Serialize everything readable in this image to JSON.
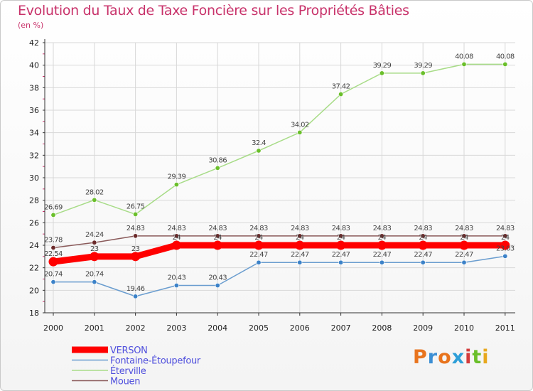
{
  "title": "Evolution du Taux de Taxe Foncière sur les Propriétés Bâties",
  "subtitle": "(en %)",
  "logo": "Proxiti",
  "colors": {
    "title": "#c8326a",
    "legend_text": "#5050dd",
    "logo": [
      "#e8741e",
      "#3c8fd4",
      "#e8741e",
      "#2e9fd8",
      "#d43c3c",
      "#6abf2a",
      "#e8a81e"
    ]
  },
  "chart_data": {
    "type": "line",
    "title": "Evolution du Taux de Taxe Foncière sur les Propriétés Bâties",
    "ylabel": "(en %)",
    "xlabel": "",
    "x": [
      "2000",
      "2001",
      "2002",
      "2003",
      "2004",
      "2005",
      "2006",
      "2007",
      "2008",
      "2009",
      "2010",
      "2011"
    ],
    "ylim": [
      18,
      42
    ],
    "yticks": [
      18,
      20,
      22,
      24,
      26,
      28,
      30,
      32,
      34,
      36,
      38,
      40,
      42
    ],
    "grid": true,
    "legend": "bottom-left",
    "series": [
      {
        "name": "Fontaine-Étoupefour",
        "color": "#6a9dcf",
        "marker": "#3c82c8",
        "width": 1.5,
        "values": [
          20.74,
          20.74,
          19.46,
          20.43,
          20.43,
          22.47,
          22.47,
          22.47,
          22.47,
          22.47,
          22.47,
          23.03
        ],
        "labels": [
          "20.74",
          "20.74",
          "19.46",
          "20.43",
          "20.43",
          "22.47",
          "22.47",
          "22.47",
          "22.47",
          "22.47",
          "22.47",
          "23.03"
        ]
      },
      {
        "name": "Éterville",
        "color": "#a8dc88",
        "marker": "#6abf2a",
        "width": 1.5,
        "values": [
          26.69,
          28.02,
          26.75,
          29.39,
          30.86,
          32.4,
          34.02,
          37.42,
          39.29,
          39.29,
          40.08,
          40.08
        ],
        "labels": [
          "26.69",
          "28.02",
          "26.75",
          "29.39",
          "30.86",
          "32.4",
          "34.02",
          "37.42",
          "39.29",
          "39.29",
          "40.08",
          "40.08"
        ]
      },
      {
        "name": "Mouen",
        "color": "#8a5a5a",
        "marker": "#6b2a2a",
        "width": 1.5,
        "values": [
          23.78,
          24.24,
          24.83,
          24.83,
          24.83,
          24.83,
          24.83,
          24.83,
          24.83,
          24.83,
          24.83,
          24.83
        ],
        "labels": [
          "23.78",
          "24.24",
          "24.83",
          "24.83",
          "24.83",
          "24.83",
          "24.83",
          "24.83",
          "24.83",
          "24.83",
          "24.83",
          "24.83"
        ]
      },
      {
        "name": "VERSON",
        "color": "#ff0000",
        "marker": "#ff0000",
        "width": 9,
        "values": [
          22.54,
          23,
          23,
          24,
          24,
          24,
          24,
          24,
          24,
          24,
          24,
          24
        ],
        "labels": [
          "22.54",
          "23",
          "23",
          "24",
          "24",
          "24",
          "24",
          "24",
          "24",
          "24",
          "24",
          "24"
        ]
      }
    ],
    "legend_order": [
      "VERSON",
      "Fontaine-Étoupefour",
      "Éterville",
      "Mouen"
    ]
  }
}
